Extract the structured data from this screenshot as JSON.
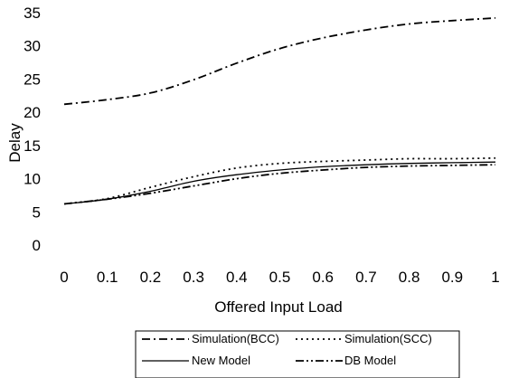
{
  "chart_data": {
    "type": "line",
    "xlabel": "Offered Input Load",
    "ylabel": "Delay",
    "xlim": [
      0,
      1
    ],
    "ylim": [
      0,
      35
    ],
    "x_ticks": [
      "0",
      "0.1",
      "0.2",
      "0.3",
      "0.4",
      "0.5",
      "0.6",
      "0.7",
      "0.8",
      "0.9",
      "1"
    ],
    "y_ticks": [
      "0",
      "5",
      "10",
      "15",
      "20",
      "25",
      "30",
      "35"
    ],
    "grid": false,
    "legend_position": "bottom",
    "series": [
      {
        "name": "Simulation(BCC)",
        "style": "dash-dot",
        "color": "#000000",
        "x": [
          0,
          0.1,
          0.2,
          0.3,
          0.4,
          0.5,
          0.6,
          0.7,
          0.8,
          0.9,
          1
        ],
        "y": [
          21.2,
          21.9,
          22.9,
          24.9,
          27.4,
          29.6,
          31.2,
          32.4,
          33.3,
          33.8,
          34.2
        ]
      },
      {
        "name": "Simulation(SCC)",
        "style": "dotted",
        "color": "#000000",
        "x": [
          0,
          0.1,
          0.2,
          0.3,
          0.4,
          0.5,
          0.6,
          0.7,
          0.8,
          0.9,
          1
        ],
        "y": [
          6.2,
          7.0,
          8.7,
          10.3,
          11.6,
          12.3,
          12.6,
          12.8,
          13.0,
          13.0,
          13.1
        ]
      },
      {
        "name": "New Model",
        "style": "solid",
        "color": "#000000",
        "x": [
          0,
          0.1,
          0.2,
          0.3,
          0.4,
          0.5,
          0.6,
          0.7,
          0.8,
          0.9,
          1
        ],
        "y": [
          6.2,
          6.9,
          8.1,
          9.6,
          10.6,
          11.3,
          11.8,
          12.1,
          12.3,
          12.4,
          12.5
        ]
      },
      {
        "name": "DB Model",
        "style": "dash-dot-dot",
        "color": "#000000",
        "x": [
          0,
          0.1,
          0.2,
          0.3,
          0.4,
          0.5,
          0.6,
          0.7,
          0.8,
          0.9,
          1
        ],
        "y": [
          6.2,
          6.9,
          7.8,
          8.9,
          10.0,
          10.8,
          11.3,
          11.7,
          11.9,
          12.0,
          12.1
        ]
      }
    ]
  }
}
